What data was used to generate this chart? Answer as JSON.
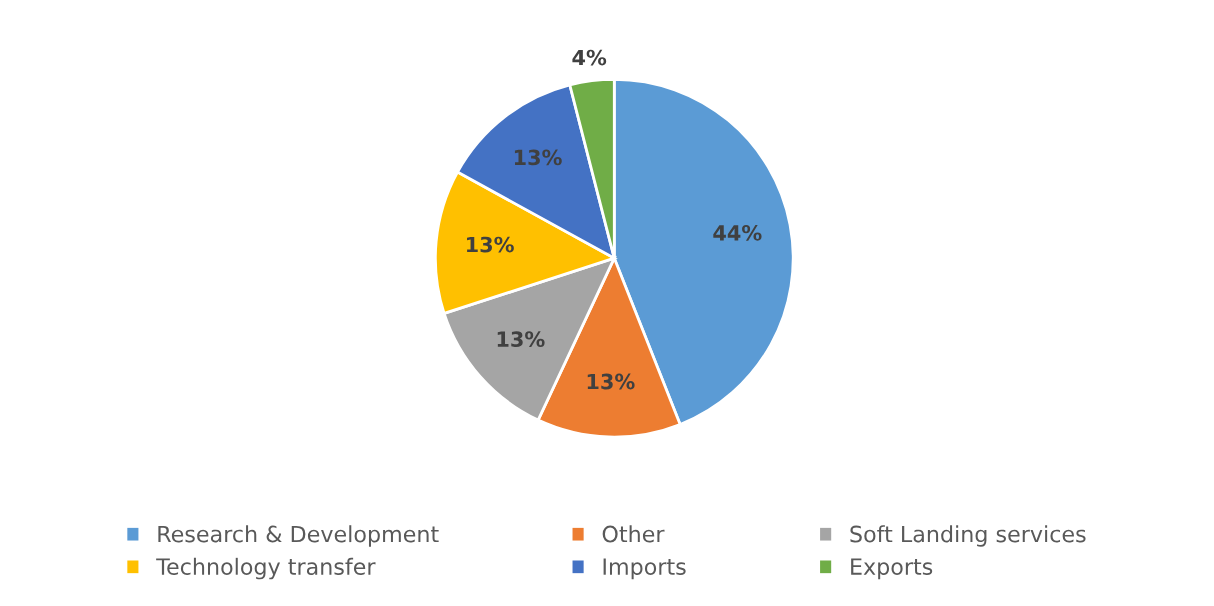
{
  "chart_data": {
    "type": "pie",
    "categories": [
      "Research & Development",
      "Other",
      "Soft Landing services",
      "Technology transfer",
      "Imports",
      "Exports"
    ],
    "values": [
      44,
      13,
      13,
      13,
      13,
      4
    ],
    "colors": [
      "#5b9bd5",
      "#ed7d31",
      "#a5a5a5",
      "#ffc000",
      "#4472c4",
      "#70ad47"
    ],
    "value_labels": [
      "44%",
      "13%",
      "13%",
      "13%",
      "13%",
      "4%"
    ],
    "legend": "bottom"
  }
}
